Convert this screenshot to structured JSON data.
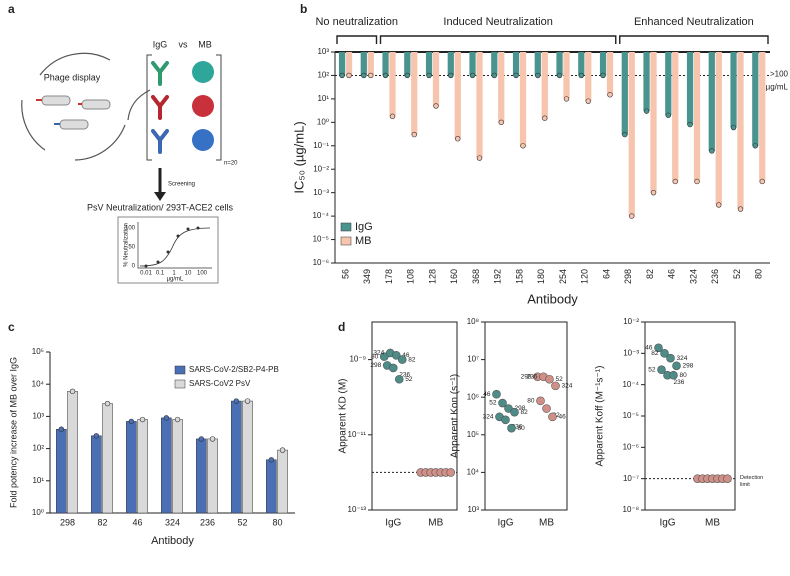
{
  "panel_a": {
    "label": "a",
    "phage_display": "Phage display",
    "comparison": [
      "IgG",
      "vs",
      "MB"
    ],
    "n": "n=20",
    "screening": "Screening",
    "assay": "PsV Neutralization/ 293T-ACE2 cells",
    "inset_ylabel": "% Neutralization",
    "inset_xlabel": "µg/mL",
    "inset_xticks": [
      "0.01",
      "0.1",
      "1",
      "10",
      "100"
    ],
    "inset_yticks": [
      "0",
      "50",
      "100"
    ]
  },
  "chart_data": [
    {
      "type": "bar",
      "panel": "b",
      "log_scale": true,
      "ylabel": "IC₅₀ (µg/mL)",
      "xlabel": "Antibody",
      "groups": [
        "No neutralization",
        "Induced Neutralization",
        "Enhanced Neutralization"
      ],
      "categories": [
        "56",
        "349",
        "178",
        "108",
        "128",
        "160",
        "368",
        "192",
        "158",
        "180",
        "254",
        "120",
        "64",
        "298",
        "82",
        "46",
        "324",
        "236",
        "52",
        "80"
      ],
      "series": [
        {
          "name": "IgG",
          "color": "#4a9490",
          "values": [
            100,
            100,
            100,
            100,
            100,
            100,
            100,
            100,
            100,
            100,
            100,
            100,
            100,
            0.3,
            3,
            2,
            0.8,
            0.06,
            0.6,
            0.1
          ]
        },
        {
          "name": "MB",
          "color": "#f7c4ae",
          "values": [
            100,
            100,
            1.8,
            0.3,
            5,
            0.2,
            0.03,
            1,
            0.1,
            1.5,
            10,
            8,
            15,
            0.0001,
            0.001,
            0.003,
            0.003,
            0.0003,
            0.0002,
            0.003
          ]
        }
      ],
      "ylim": [
        1e-06,
        1000
      ],
      "yticks": [
        {
          "value": 1e-06,
          "label": "10⁻⁶"
        },
        {
          "value": 1e-05,
          "label": "10⁻⁵"
        },
        {
          "value": 0.0001,
          "label": "10⁻⁴"
        },
        {
          "value": 0.001,
          "label": "10⁻³"
        },
        {
          "value": 0.01,
          "label": "10⁻²"
        },
        {
          "value": 0.1,
          "label": "10⁻¹"
        },
        {
          "value": 1,
          "label": "10⁰"
        },
        {
          "value": 10,
          "label": "10¹"
        },
        {
          "value": 100,
          "label": "10²"
        },
        {
          "value": 1000,
          "label": "10³"
        }
      ],
      "threshold": 100,
      "threshold_label": [
        ">100",
        "µg/mL"
      ],
      "legend": "lower left"
    },
    {
      "type": "bar",
      "panel": "c",
      "log_scale": true,
      "ylabel": "Fold potency increase of MB over IgG",
      "xlabel": "Antibody",
      "categories": [
        "298",
        "82",
        "46",
        "324",
        "236",
        "52",
        "80"
      ],
      "series": [
        {
          "name": "SARS-CoV-2/SB2-P4-PB",
          "color": "#4a6fb5",
          "values": [
            400,
            250,
            700,
            900,
            200,
            3000,
            45
          ]
        },
        {
          "name": "SARS-CoV2 PsV",
          "color": "#d9d9d9",
          "values": [
            6000,
            2500,
            800,
            800,
            200,
            3000,
            90
          ]
        }
      ],
      "ylim": [
        1,
        100000
      ],
      "yticks": [
        {
          "value": 1,
          "label": "10⁰"
        },
        {
          "value": 10,
          "label": "10¹"
        },
        {
          "value": 100,
          "label": "10²"
        },
        {
          "value": 1000,
          "label": "10³"
        },
        {
          "value": 10000,
          "label": "10⁴"
        },
        {
          "value": 100000,
          "label": "10⁵"
        }
      ],
      "legend": "upper right"
    },
    {
      "type": "scatter",
      "panel": "d",
      "log_scale": true,
      "ylabel": "Apparent KD (M)",
      "categories": [
        "IgG",
        "MB"
      ],
      "series": [
        {
          "color": "#4e8c88",
          "values": [
            1.2e-09,
            1.5e-09,
            1.3e-09,
            1e-09,
            7e-10,
            6e-10,
            3e-10
          ],
          "point_labels": [
            "80",
            "324",
            "46",
            "82",
            "298",
            "236",
            "52"
          ]
        },
        {
          "color": "#d09088",
          "values": [
            1e-12,
            1e-12,
            1e-12,
            1e-12,
            1e-12,
            1e-12,
            1e-12
          ]
        }
      ],
      "ylim": [
        1e-13,
        1e-08
      ],
      "yticks": [
        {
          "value": 1e-09,
          "label": "10⁻⁹"
        },
        {
          "value": 1e-11,
          "label": "10⁻¹¹"
        },
        {
          "value": 1e-13,
          "label": "10⁻¹³"
        }
      ],
      "threshold": 1e-12
    },
    {
      "type": "scatter",
      "log_scale": true,
      "ylabel": "Apparent Kon (s⁻¹)",
      "categories": [
        "IgG",
        "MB"
      ],
      "series": [
        {
          "color": "#4e8c88",
          "values": [
            1200000,
            700000,
            500000,
            400000,
            300000,
            250000,
            150000
          ],
          "point_labels": [
            "46",
            "52",
            "298",
            "82",
            "324",
            "236",
            "80"
          ]
        },
        {
          "color": "#d09088",
          "values": [
            3500000,
            3500000,
            3000000,
            2000000,
            800000,
            500000,
            300000
          ],
          "point_labels": [
            "298",
            "236",
            "52",
            "324",
            "80",
            "82",
            "46"
          ]
        }
      ],
      "ylim": [
        1000,
        100000000
      ],
      "yticks": [
        {
          "value": 1000,
          "label": "10³"
        },
        {
          "value": 10000,
          "label": "10⁴"
        },
        {
          "value": 100000,
          "label": "10⁵"
        },
        {
          "value": 1000000,
          "label": "10⁶"
        },
        {
          "value": 10000000,
          "label": "10⁷"
        },
        {
          "value": 100000000,
          "label": "10⁸"
        }
      ]
    },
    {
      "type": "scatter",
      "log_scale": true,
      "ylabel": "Apparent Koff (M⁻¹s⁻¹)",
      "categories": [
        "IgG",
        "MB"
      ],
      "series": [
        {
          "color": "#4e8c88",
          "values": [
            0.0015,
            0.001,
            0.0007,
            0.0004,
            0.0003,
            0.0002,
            0.0002
          ],
          "point_labels": [
            "46",
            "82",
            "324",
            "298",
            "52",
            "236",
            "80"
          ]
        },
        {
          "color": "#d09088",
          "values": [
            1e-07,
            1e-07,
            1e-07,
            1e-07,
            1e-07,
            1e-07,
            1e-07
          ]
        }
      ],
      "ylim": [
        1e-08,
        0.01
      ],
      "yticks": [
        {
          "value": 0.01,
          "label": "10⁻²"
        },
        {
          "value": 0.001,
          "label": "10⁻³"
        },
        {
          "value": 0.0001,
          "label": "10⁻⁴"
        },
        {
          "value": 1e-05,
          "label": "10⁻⁵"
        },
        {
          "value": 1e-06,
          "label": "10⁻⁶"
        },
        {
          "value": 1e-07,
          "label": "10⁻⁷"
        },
        {
          "value": 1e-08,
          "label": "10⁻⁸"
        }
      ],
      "threshold": 1e-07,
      "threshold_label": [
        "Detection",
        "limit"
      ]
    }
  ]
}
